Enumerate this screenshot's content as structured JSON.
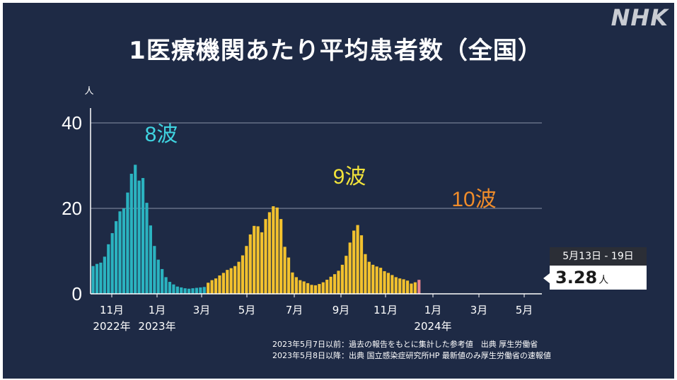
{
  "brand": "NHK",
  "chart_data": {
    "type": "bar",
    "title": "1医療機関あたり平均患者数（全国）",
    "ylabel": "人",
    "ylim": [
      0,
      45
    ],
    "yticks": [
      0,
      20,
      40
    ],
    "grid": true,
    "x_tick_labels": [
      "11月",
      "1月",
      "3月",
      "5月",
      "7月",
      "9月",
      "11月",
      "1月",
      "3月",
      "5月"
    ],
    "year_labels": [
      "2022年",
      "2023年",
      "2024年"
    ],
    "wave_labels": [
      {
        "text": "8波",
        "color": "#3fd3e0"
      },
      {
        "text": "9波",
        "color": "#f2e33a"
      },
      {
        "text": "10波",
        "color": "#f08c2a"
      }
    ],
    "series": [
      {
        "name": "2023年5月7日以前",
        "color": "#2bb3c0",
        "values": [
          6.5,
          7.0,
          7.3,
          8.7,
          11.6,
          14.2,
          17.0,
          19.3,
          20.0,
          23.7,
          28.1,
          30.2,
          26.5,
          27.1,
          21.3,
          16.0,
          11.2,
          8.0,
          5.8,
          3.9,
          2.8,
          2.2,
          1.7,
          1.5,
          1.3,
          1.2,
          1.3,
          1.4,
          1.5,
          1.6
        ]
      },
      {
        "name": "2023年5月8日以降",
        "color": "#f2c12e",
        "values": [
          2.6,
          3.2,
          3.6,
          4.3,
          4.9,
          5.6,
          6.0,
          6.5,
          7.5,
          9.0,
          11.2,
          13.9,
          15.9,
          15.8,
          14.4,
          17.5,
          19.1,
          20.5,
          20.2,
          17.5,
          11.0,
          8.5,
          5.0,
          3.9,
          3.2,
          2.9,
          2.5,
          2.1,
          2.0,
          2.3,
          2.7,
          3.3,
          4.0,
          4.6,
          5.4,
          6.8,
          8.9,
          12.0,
          14.8,
          16.1,
          13.7,
          9.3,
          7.5,
          6.8,
          6.4,
          6.1,
          5.3,
          4.9,
          4.4,
          3.9,
          3.6,
          3.4,
          3.1,
          2.4,
          2.7
        ]
      },
      {
        "name": "最新値",
        "color": "#e8838f",
        "values": [
          3.28
        ]
      }
    ],
    "latest": {
      "label": "5月13日 - 19日",
      "value": "3.28",
      "unit": "人"
    }
  },
  "notes": [
    "2023年5月7日以前：過去の報告をもとに集計した参考値　出典 厚生労働省",
    "2023年5月8日以降：出典 国立感染症研究所HP 最新値のみ厚生労働省の速報値"
  ]
}
